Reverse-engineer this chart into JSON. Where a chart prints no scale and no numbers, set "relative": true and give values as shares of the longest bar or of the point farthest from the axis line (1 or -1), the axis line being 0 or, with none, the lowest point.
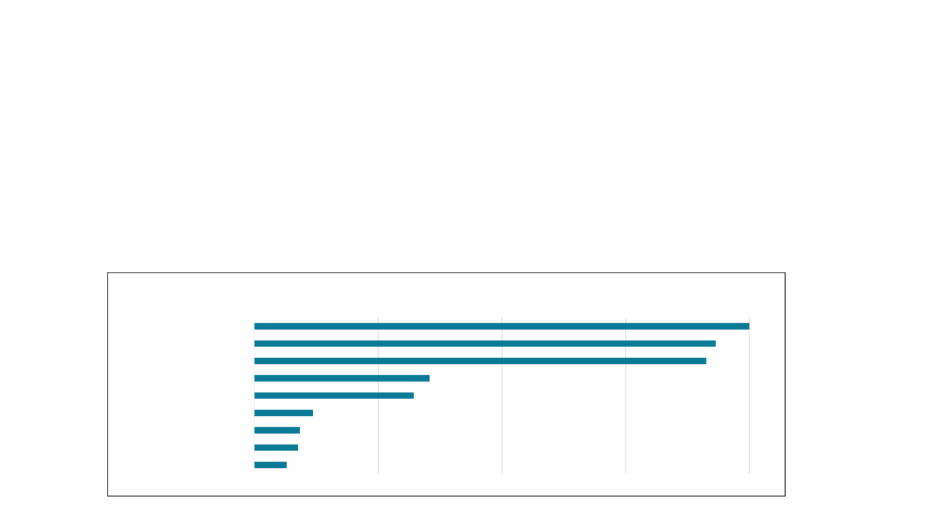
{
  "chart_data": {
    "type": "bar",
    "orientation": "horizontal",
    "relative": true,
    "grid": "x",
    "color": "#0b7a96",
    "categories": [
      null,
      null,
      null,
      null,
      null,
      null,
      null,
      null,
      null
    ],
    "values": [
      1,
      0.932,
      0.913,
      0.354,
      0.322,
      0.118,
      0.092,
      0.088,
      0.065
    ]
  }
}
